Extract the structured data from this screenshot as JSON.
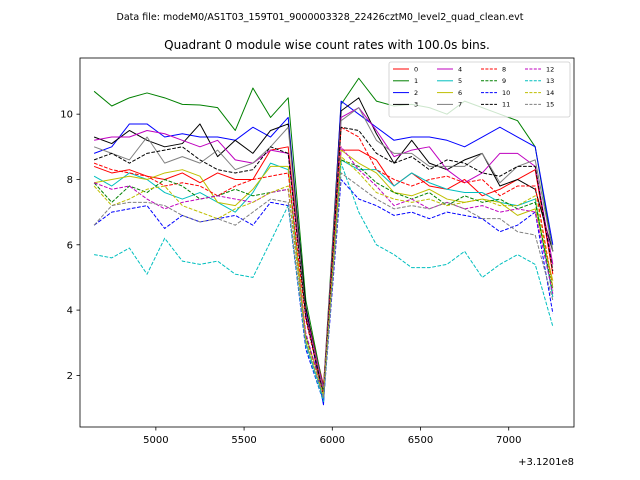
{
  "suptitle": "Data file: modeM0/AS1T03_159T01_9000003328_22426cztM0_level2_quad_clean.evt",
  "chart_data": {
    "type": "line",
    "title": "Quadrant 0 module wise count rates with 100.0s bins.",
    "xlabel": "",
    "ylabel": "",
    "x_offset_label": "+3.1201e8",
    "xlim": [
      4570,
      7370
    ],
    "ylim": [
      0.42,
      11.72
    ],
    "xticks": [
      5000,
      5500,
      6000,
      6500,
      7000
    ],
    "yticks": [
      2,
      4,
      6,
      8,
      10
    ],
    "grid": false,
    "legend": {
      "location": "top-right",
      "columns": 4
    },
    "x": [
      4650,
      4750,
      4850,
      4950,
      5050,
      5150,
      5250,
      5350,
      5450,
      5550,
      5650,
      5750,
      5850,
      5950,
      6050,
      6150,
      6250,
      6350,
      6450,
      6550,
      6650,
      6750,
      6850,
      6950,
      7050,
      7150,
      7250
    ],
    "series": [
      {
        "name": "0",
        "color": "#ff0000",
        "dash": "solid",
        "values": [
          8.4,
          8.2,
          8.3,
          8.1,
          8.0,
          8.2,
          7.9,
          8.2,
          8.0,
          8.0,
          8.9,
          9.0,
          4.0,
          1.7,
          8.9,
          8.9,
          8.6,
          7.8,
          8.2,
          7.8,
          7.7,
          8.0,
          7.5,
          7.7,
          8.0,
          8.3,
          5.1
        ]
      },
      {
        "name": "1",
        "color": "#008000",
        "dash": "solid",
        "values": [
          10.7,
          10.25,
          10.5,
          10.65,
          10.5,
          10.3,
          10.28,
          10.2,
          9.5,
          10.8,
          9.9,
          10.5,
          4.3,
          1.6,
          10.3,
          11.1,
          10.4,
          10.25,
          10.3,
          10.2,
          10.0,
          10.4,
          10.2,
          10.0,
          9.8,
          9.0,
          5.8
        ]
      },
      {
        "name": "2",
        "color": "#0000ff",
        "dash": "solid",
        "values": [
          8.8,
          9.0,
          9.7,
          9.7,
          9.3,
          9.4,
          9.3,
          9.3,
          9.2,
          9.6,
          9.3,
          9.9,
          4.0,
          1.1,
          10.4,
          10.0,
          9.6,
          9.2,
          9.3,
          9.3,
          9.2,
          9.0,
          9.3,
          9.6,
          9.3,
          9.0,
          6.0
        ]
      },
      {
        "name": "3",
        "color": "#000000",
        "dash": "solid",
        "values": [
          9.3,
          9.1,
          9.5,
          9.2,
          9.0,
          9.1,
          9.7,
          8.7,
          9.2,
          8.8,
          9.5,
          9.7,
          4.1,
          1.4,
          10.1,
          10.5,
          9.4,
          8.5,
          9.2,
          8.5,
          8.3,
          8.6,
          8.8,
          7.8,
          8.0,
          7.7,
          5.8
        ]
      },
      {
        "name": "4",
        "color": "#bf00bf",
        "dash": "solid",
        "values": [
          9.2,
          9.3,
          9.3,
          9.5,
          9.4,
          9.2,
          9.0,
          9.2,
          8.6,
          8.5,
          8.9,
          8.8,
          3.9,
          1.6,
          9.9,
          10.2,
          9.5,
          8.7,
          8.9,
          9.0,
          8.3,
          7.9,
          8.2,
          8.8,
          8.8,
          8.4,
          5.4
        ]
      },
      {
        "name": "5",
        "color": "#00bfbf",
        "dash": "solid",
        "values": [
          8.1,
          7.8,
          8.2,
          8.0,
          7.6,
          7.4,
          7.6,
          7.3,
          7.0,
          7.6,
          8.5,
          8.3,
          3.0,
          1.3,
          8.6,
          8.3,
          8.3,
          7.8,
          8.2,
          7.9,
          7.7,
          7.6,
          7.6,
          7.3,
          7.2,
          7.4,
          4.4
        ]
      },
      {
        "name": "6",
        "color": "#bfbf00",
        "dash": "solid",
        "values": [
          7.9,
          8.0,
          8.1,
          8.0,
          8.2,
          8.3,
          8.1,
          7.3,
          7.2,
          7.7,
          8.4,
          8.4,
          3.2,
          1.5,
          8.9,
          8.5,
          8.2,
          7.6,
          7.5,
          7.7,
          7.4,
          7.3,
          7.4,
          7.3,
          6.9,
          7.1,
          4.9
        ]
      },
      {
        "name": "7",
        "color": "#808080",
        "dash": "solid",
        "values": [
          9.0,
          8.8,
          8.6,
          9.3,
          8.5,
          8.7,
          8.5,
          8.9,
          8.3,
          8.5,
          9.0,
          9.6,
          3.8,
          1.5,
          9.8,
          10.2,
          9.2,
          8.8,
          8.8,
          8.4,
          8.4,
          8.4,
          8.8,
          7.9,
          8.4,
          8.6,
          5.8
        ]
      },
      {
        "name": "8",
        "color": "#ff0000",
        "dash": "dashed",
        "values": [
          8.5,
          8.3,
          8.2,
          8.1,
          7.8,
          7.9,
          7.8,
          7.5,
          7.8,
          8.0,
          8.1,
          8.2,
          3.7,
          1.4,
          9.6,
          9.3,
          8.3,
          8.0,
          7.8,
          8.0,
          8.1,
          7.9,
          8.0,
          7.5,
          7.8,
          7.8,
          4.7
        ]
      },
      {
        "name": "9",
        "color": "#008000",
        "dash": "dashed",
        "values": [
          7.9,
          7.3,
          7.8,
          7.6,
          8.0,
          7.8,
          7.4,
          7.5,
          7.7,
          7.5,
          7.6,
          7.7,
          3.2,
          1.5,
          8.6,
          8.4,
          7.9,
          7.6,
          7.4,
          7.6,
          7.2,
          7.5,
          7.3,
          7.4,
          7.1,
          7.3,
          4.6
        ]
      },
      {
        "name": "10",
        "color": "#0000ff",
        "dash": "dashed",
        "values": [
          6.6,
          7.0,
          7.1,
          7.2,
          6.5,
          6.9,
          6.7,
          6.8,
          6.9,
          6.6,
          7.3,
          7.2,
          2.8,
          1.2,
          8.0,
          7.4,
          7.2,
          6.9,
          7.0,
          6.8,
          7.0,
          6.9,
          6.8,
          6.4,
          6.6,
          7.0,
          3.9
        ]
      },
      {
        "name": "11",
        "color": "#000000",
        "dash": "dashed",
        "values": [
          8.6,
          8.8,
          8.5,
          8.8,
          8.9,
          9.0,
          8.6,
          8.3,
          8.2,
          8.3,
          9.0,
          8.8,
          3.8,
          1.4,
          9.6,
          9.5,
          8.8,
          8.5,
          8.7,
          8.3,
          8.6,
          8.5,
          8.2,
          8.1,
          8.4,
          8.4,
          5.2
        ]
      },
      {
        "name": "12",
        "color": "#bf00bf",
        "dash": "dashed",
        "values": [
          7.9,
          7.7,
          7.8,
          7.4,
          7.1,
          7.3,
          7.4,
          7.5,
          7.4,
          7.3,
          7.6,
          7.7,
          3.3,
          1.4,
          9.0,
          8.3,
          7.8,
          7.2,
          7.4,
          7.1,
          7.3,
          7.1,
          7.2,
          7.0,
          7.1,
          7.0,
          4.5
        ]
      },
      {
        "name": "13",
        "color": "#00bfbf",
        "dash": "dashed",
        "values": [
          5.7,
          5.6,
          5.9,
          5.1,
          6.2,
          5.5,
          5.4,
          5.5,
          5.1,
          5.0,
          6.1,
          7.2,
          2.9,
          1.2,
          8.5,
          7.0,
          6.0,
          5.7,
          5.3,
          5.3,
          5.4,
          5.8,
          5.0,
          5.4,
          5.7,
          5.4,
          3.5
        ]
      },
      {
        "name": "14",
        "color": "#bfbf00",
        "dash": "dashed",
        "values": [
          7.8,
          7.2,
          7.4,
          7.7,
          7.8,
          7.2,
          7.0,
          6.8,
          7.1,
          7.3,
          7.6,
          7.8,
          3.1,
          1.4,
          8.7,
          8.2,
          7.6,
          7.4,
          7.3,
          7.4,
          7.2,
          7.3,
          7.4,
          7.2,
          7.2,
          7.5,
          4.7
        ]
      },
      {
        "name": "15",
        "color": "#808080",
        "dash": "dashed",
        "values": [
          6.6,
          7.2,
          7.3,
          7.3,
          7.2,
          6.9,
          6.7,
          6.8,
          6.6,
          7.0,
          7.4,
          7.3,
          3.0,
          1.3,
          8.2,
          7.8,
          7.4,
          7.1,
          7.2,
          7.1,
          7.3,
          7.1,
          6.8,
          6.8,
          6.4,
          6.3,
          4.3
        ]
      }
    ]
  }
}
